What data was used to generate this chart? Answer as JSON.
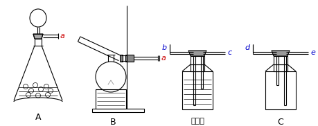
{
  "bg_color": "#ffffff",
  "label_A": "A",
  "label_B": "B",
  "label_C": "C",
  "label_a1": "a",
  "label_a2": "a",
  "label_b": "b",
  "label_c": "c",
  "label_d": "d",
  "label_e": "e",
  "label_conc": "浓硫酸",
  "line_color": "#000000",
  "red_color": "#cc0000",
  "blue_color": "#0000cc",
  "figsize": [
    4.59,
    1.82
  ],
  "dpi": 100
}
